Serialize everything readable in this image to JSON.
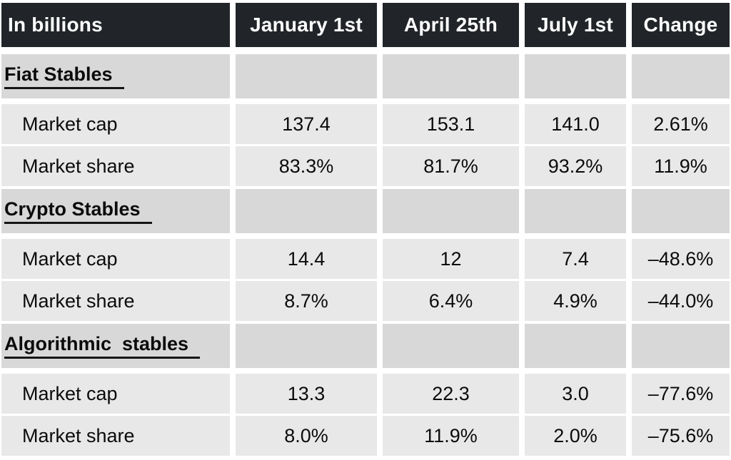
{
  "table": {
    "header": [
      "In billions",
      "January 1st",
      "April 25th",
      "July 1st",
      "Change"
    ],
    "sections": [
      {
        "title": "Fiat Stables",
        "rows": [
          {
            "label": "Market cap",
            "values": [
              "137.4",
              "153.1",
              "141.0",
              "2.61%"
            ]
          },
          {
            "label": "Market share",
            "values": [
              "83.3%",
              "81.7%",
              "93.2%",
              "11.9%"
            ]
          }
        ]
      },
      {
        "title": "Crypto Stables",
        "rows": [
          {
            "label": "Market cap",
            "values": [
              "14.4",
              "12",
              "7.4",
              "–48.6%"
            ]
          },
          {
            "label": "Market share",
            "values": [
              "8.7%",
              "6.4%",
              "4.9%",
              "–44.0%"
            ]
          }
        ]
      },
      {
        "title": "Algorithmic  stables",
        "rows": [
          {
            "label": "Market cap",
            "values": [
              "13.3",
              "22.3",
              "3.0",
              "–77.6%"
            ]
          },
          {
            "label": "Market share",
            "values": [
              "8.0%",
              "11.9%",
              "2.0%",
              "–75.6%"
            ]
          }
        ]
      }
    ]
  },
  "colors": {
    "header_bg": "#212529",
    "header_text": "#ffffff",
    "section_row_bg": "#d8d8d8",
    "data_row_bg": "#e8e8e8",
    "body_text": "#0b0b0b",
    "gap": "#ffffff"
  },
  "chart_data": {
    "type": "table",
    "title": "In billions",
    "columns": [
      "In billions",
      "January 1st",
      "April 25th",
      "July 1st",
      "Change"
    ],
    "rows": [
      [
        "Fiat Stables",
        null,
        null,
        null,
        null
      ],
      [
        "Market cap",
        137.4,
        153.1,
        141.0,
        "2.61%"
      ],
      [
        "Market share",
        "83.3%",
        "81.7%",
        "93.2%",
        "11.9%"
      ],
      [
        "Crypto Stables",
        null,
        null,
        null,
        null
      ],
      [
        "Market cap",
        14.4,
        12,
        7.4,
        "–48.6%"
      ],
      [
        "Market share",
        "8.7%",
        "6.4%",
        "4.9%",
        "–44.0%"
      ],
      [
        "Algorithmic stables",
        null,
        null,
        null,
        null
      ],
      [
        "Market cap",
        13.3,
        22.3,
        3.0,
        "–77.6%"
      ],
      [
        "Market share",
        "8.0%",
        "11.9%",
        "2.0%",
        "–75.6%"
      ]
    ],
    "layout_hints": {
      "section_rows_underlined_bold": true,
      "value_columns_centered": true,
      "negative_sign_glyph": "en-dash"
    }
  }
}
